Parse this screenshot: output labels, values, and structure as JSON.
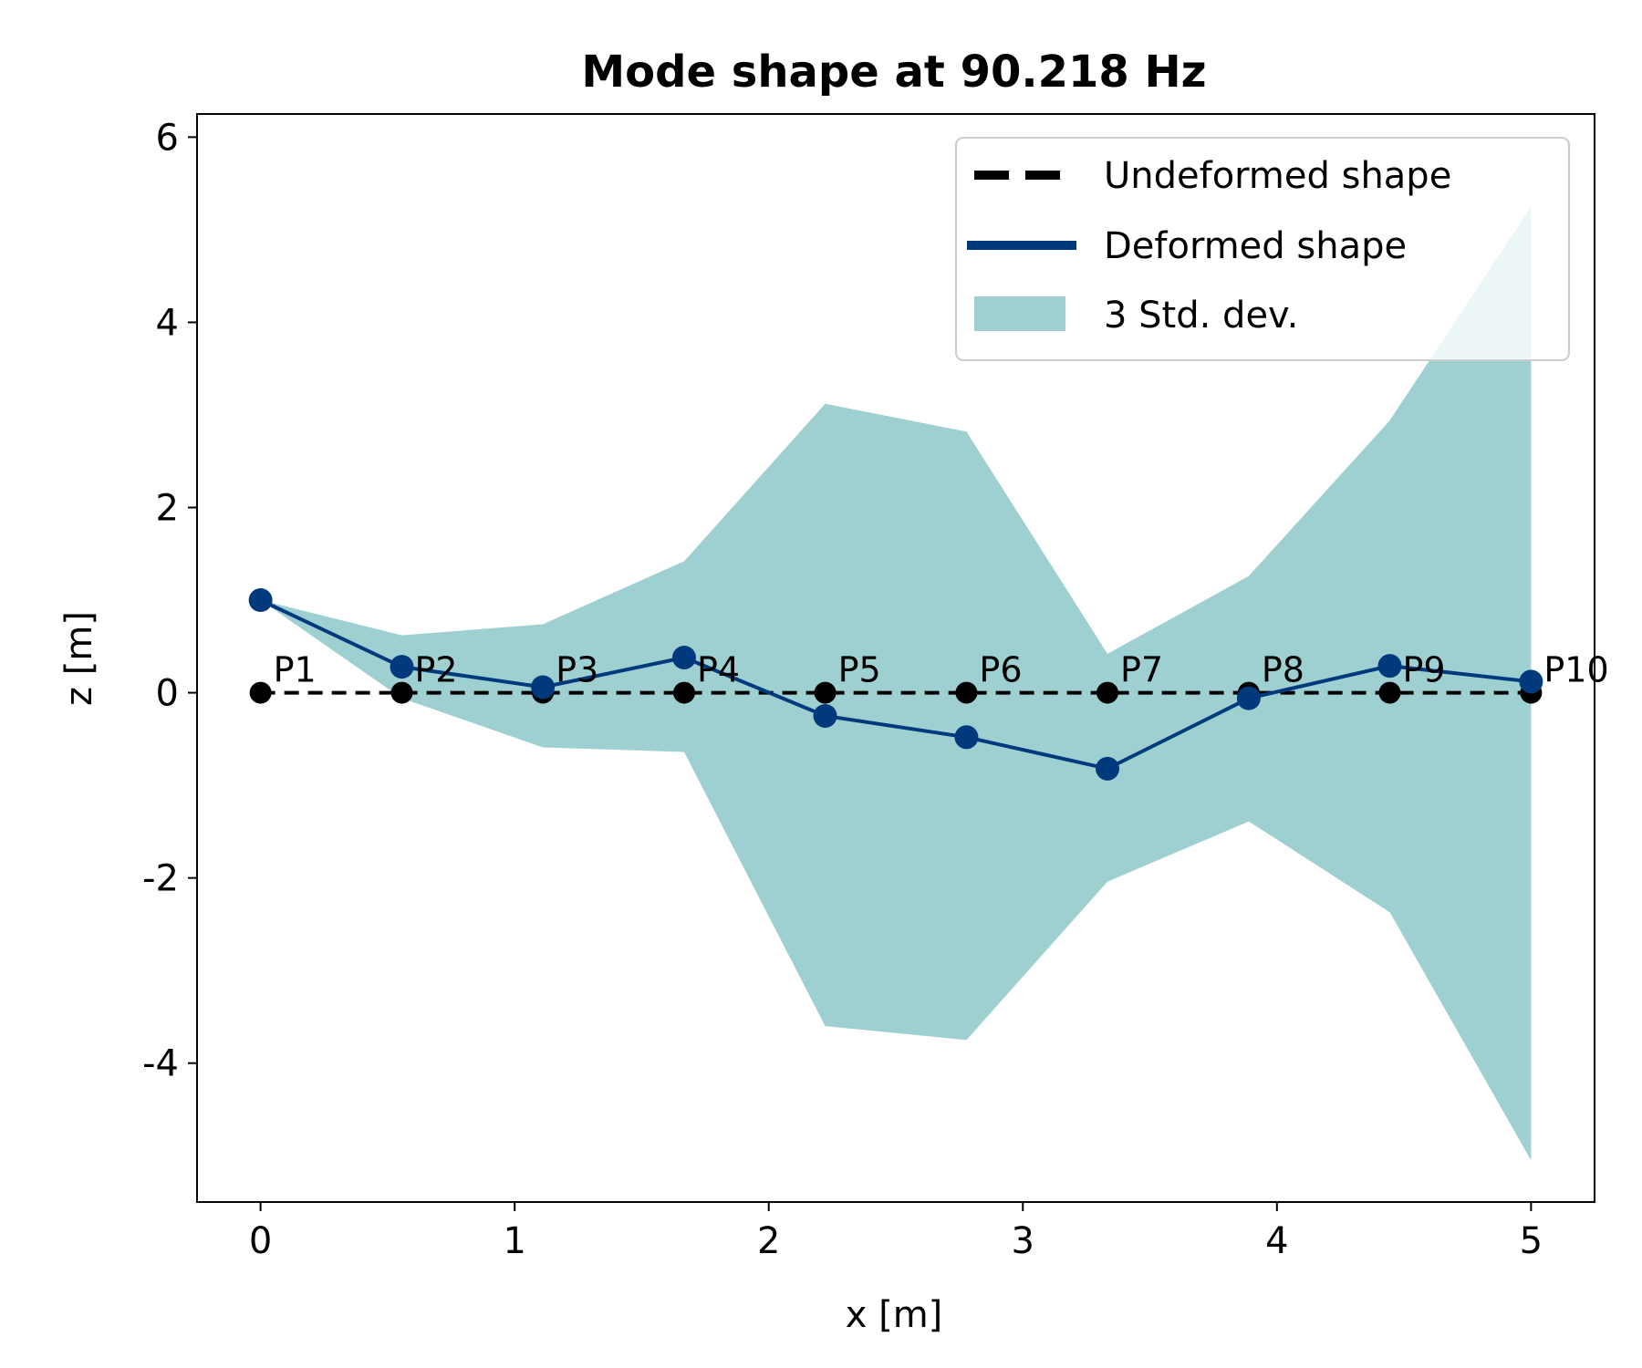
{
  "chart_data": {
    "type": "line",
    "title": "Mode shape at 90.218 Hz",
    "xlabel": "x [m]",
    "ylabel": "z [m]",
    "xlim": [
      -0.25,
      5.25
    ],
    "ylim": [
      -5.5,
      6.25
    ],
    "xticks": [
      0,
      1,
      2,
      3,
      4,
      5
    ],
    "yticks": [
      -4,
      -2,
      0,
      2,
      4,
      6
    ],
    "xtick_labels": [
      "0",
      "1",
      "2",
      "3",
      "4",
      "5"
    ],
    "ytick_labels": [
      "-4",
      "-2",
      "0",
      "2",
      "4",
      "6"
    ],
    "grid": false,
    "legend_position": "top-right",
    "points": [
      "P1",
      "P2",
      "P3",
      "P4",
      "P5",
      "P6",
      "P7",
      "P8",
      "P9",
      "P10"
    ],
    "x": [
      0,
      0.556,
      1.111,
      1.667,
      2.222,
      2.778,
      3.333,
      3.889,
      4.444,
      5.0
    ],
    "series": [
      {
        "name": "Undeformed shape",
        "style": "dashed",
        "color": "#000000",
        "values": [
          0,
          0,
          0,
          0,
          0,
          0,
          0,
          0,
          0,
          0
        ]
      },
      {
        "name": "Deformed shape",
        "style": "solid",
        "color": "#003a7d",
        "values": [
          1.0,
          0.28,
          0.06,
          0.38,
          -0.25,
          -0.48,
          -0.82,
          -0.06,
          0.29,
          0.12
        ]
      }
    ],
    "band": {
      "name": "3 Std. dev.",
      "color": "#9ed0d1",
      "upper": [
        1.0,
        0.62,
        0.74,
        1.42,
        3.12,
        2.82,
        0.42,
        1.26,
        2.94,
        5.25
      ],
      "lower": [
        1.0,
        -0.06,
        -0.59,
        -0.64,
        -3.6,
        -3.75,
        -2.04,
        -1.39,
        -2.37,
        -5.05
      ]
    }
  }
}
